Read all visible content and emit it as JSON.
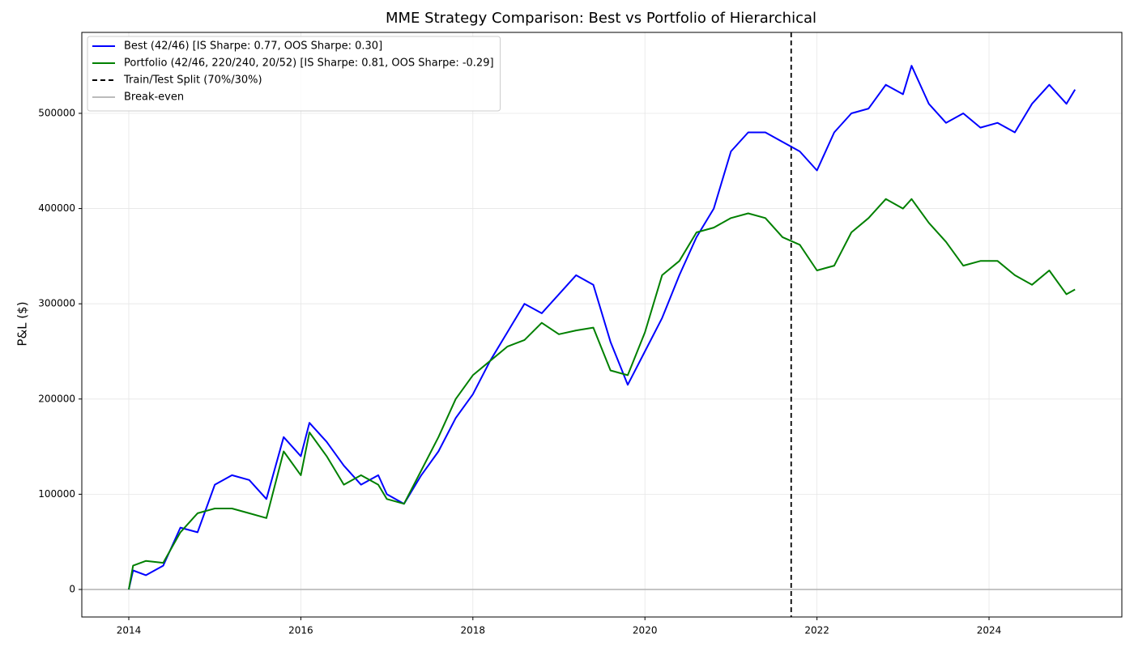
{
  "chart_data": {
    "type": "line",
    "title": "MME Strategy Comparison: Best vs Portfolio of Hierarchical",
    "ylabel": "P&L ($)",
    "x": [
      2014.0,
      2014.05,
      2014.2,
      2014.4,
      2014.6,
      2014.8,
      2015.0,
      2015.2,
      2015.4,
      2015.6,
      2015.8,
      2016.0,
      2016.1,
      2016.3,
      2016.5,
      2016.7,
      2016.9,
      2017.0,
      2017.2,
      2017.4,
      2017.6,
      2017.8,
      2018.0,
      2018.2,
      2018.4,
      2018.6,
      2018.8,
      2019.0,
      2019.2,
      2019.4,
      2019.6,
      2019.8,
      2020.0,
      2020.2,
      2020.4,
      2020.6,
      2020.8,
      2021.0,
      2021.2,
      2021.4,
      2021.6,
      2021.8,
      2022.0,
      2022.2,
      2022.4,
      2022.6,
      2022.8,
      2023.0,
      2023.1,
      2023.3,
      2023.5,
      2023.7,
      2023.9,
      2024.1,
      2024.3,
      2024.5,
      2024.7,
      2024.9,
      2025.0
    ],
    "series": [
      {
        "name": "Best (42/46) [IS Sharpe: 0.77, OOS Sharpe: 0.30]",
        "color": "#0000ff",
        "values": [
          0,
          20000,
          15000,
          25000,
          65000,
          60000,
          110000,
          120000,
          115000,
          95000,
          160000,
          140000,
          175000,
          155000,
          130000,
          110000,
          120000,
          100000,
          90000,
          120000,
          145000,
          180000,
          205000,
          240000,
          270000,
          300000,
          290000,
          310000,
          330000,
          320000,
          260000,
          215000,
          250000,
          285000,
          330000,
          370000,
          400000,
          460000,
          480000,
          480000,
          470000,
          460000,
          440000,
          480000,
          500000,
          505000,
          530000,
          520000,
          550000,
          510000,
          490000,
          500000,
          485000,
          490000,
          480000,
          510000,
          530000,
          510000,
          525000
        ]
      },
      {
        "name": "Portfolio (42/46, 220/240, 20/52) [IS Sharpe: 0.81, OOS Sharpe: -0.29]",
        "color": "#008000",
        "values": [
          0,
          25000,
          30000,
          28000,
          60000,
          80000,
          85000,
          85000,
          80000,
          75000,
          145000,
          120000,
          165000,
          140000,
          110000,
          120000,
          110000,
          95000,
          90000,
          125000,
          160000,
          200000,
          225000,
          240000,
          255000,
          262000,
          280000,
          268000,
          272000,
          275000,
          230000,
          225000,
          270000,
          330000,
          345000,
          375000,
          380000,
          390000,
          395000,
          390000,
          370000,
          362000,
          335000,
          340000,
          375000,
          390000,
          410000,
          400000,
          410000,
          385000,
          365000,
          340000,
          345000,
          345000,
          330000,
          320000,
          335000,
          310000,
          315000
        ]
      }
    ],
    "reference_lines": [
      {
        "name": "Train/Test Split (70%/30%)",
        "color": "#000000",
        "dashed": true,
        "x": 2021.7
      },
      {
        "name": "Break-even",
        "color": "#bbbbbb",
        "dashed": false,
        "y": 0
      }
    ],
    "xlim": [
      2013.454,
      2025.544
    ],
    "ylim": [
      -28900,
      585000
    ],
    "xticks": [
      2014,
      2016,
      2018,
      2020,
      2022,
      2024
    ],
    "yticks": [
      0,
      100000,
      200000,
      300000,
      400000,
      500000
    ],
    "grid": true,
    "legend": "upper-left"
  }
}
